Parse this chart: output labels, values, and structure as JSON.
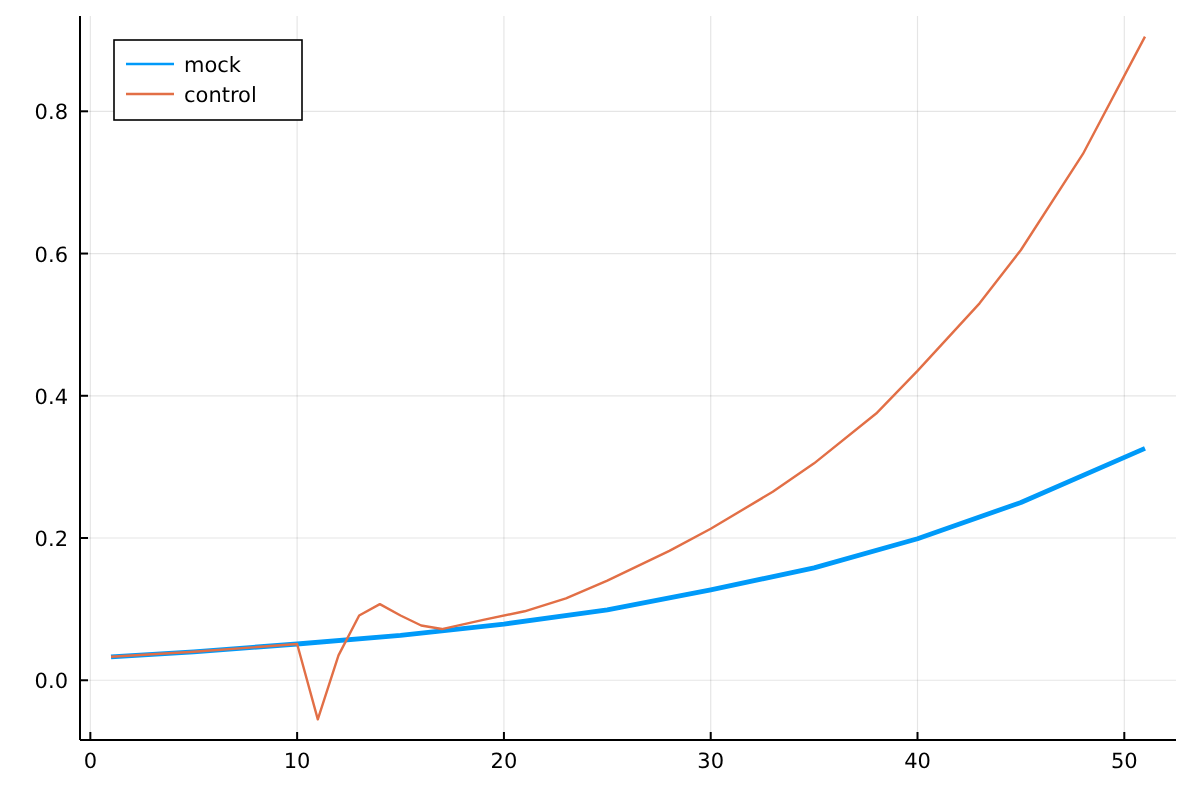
{
  "chart_data": {
    "type": "line",
    "xlim": [
      -0.5,
      52.5
    ],
    "ylim": [
      -0.084,
      0.934
    ],
    "xticks": [
      0,
      10,
      20,
      30,
      40,
      50
    ],
    "yticks": [
      {
        "value": 0,
        "label": "0.0"
      },
      {
        "value": 0.2,
        "label": "0.2"
      },
      {
        "value": 0.4,
        "label": "0.4"
      },
      {
        "value": 0.6,
        "label": "0.6"
      },
      {
        "value": 0.8,
        "label": "0.8"
      }
    ],
    "grid": true,
    "legend": "top left",
    "line_style": "solid",
    "marker": "none",
    "series": [
      {
        "name": "mock",
        "color": "#009af9",
        "x": [
          1,
          5,
          10,
          15,
          20,
          25,
          30,
          35,
          40,
          45,
          51
        ],
        "values": [
          0.033,
          0.04,
          0.051,
          0.063,
          0.079,
          0.099,
          0.127,
          0.158,
          0.199,
          0.25,
          0.326
        ]
      },
      {
        "name": "control",
        "color": "#e26f46",
        "x": [
          1,
          5,
          10,
          11,
          12,
          13,
          14,
          15,
          16,
          17,
          19,
          21,
          23,
          25,
          28,
          30,
          33,
          35,
          38,
          40,
          43,
          45,
          48,
          51
        ],
        "values": [
          0.033,
          0.04,
          0.051,
          -0.055,
          0.035,
          0.091,
          0.107,
          0.091,
          0.077,
          0.072,
          0.085,
          0.097,
          0.115,
          0.14,
          0.182,
          0.213,
          0.265,
          0.305,
          0.375,
          0.435,
          0.53,
          0.605,
          0.74,
          0.905
        ]
      }
    ]
  }
}
